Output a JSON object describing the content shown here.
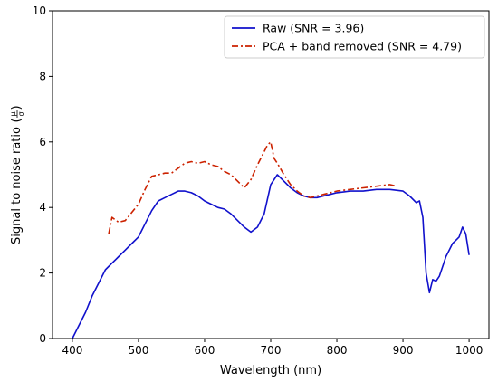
{
  "chart_data": {
    "type": "line",
    "title": "",
    "xlabel": "Wavelength (nm)",
    "ylabel": "Signal to noise ratio",
    "ylabel_fraction": {
      "num": "μ",
      "den": "σ"
    },
    "xlim": [
      370,
      1030
    ],
    "ylim": [
      0,
      10
    ],
    "xticks": [
      400,
      500,
      600,
      700,
      800,
      900,
      1000
    ],
    "yticks": [
      0,
      2,
      4,
      6,
      8,
      10
    ],
    "grid": false,
    "legend_position": "top-right",
    "series": [
      {
        "name": "Raw (SNR = 3.96)",
        "color": "#1111cc",
        "style": "solid",
        "x": [
          400,
          410,
          420,
          430,
          440,
          450,
          460,
          470,
          480,
          490,
          500,
          510,
          520,
          530,
          540,
          550,
          560,
          570,
          580,
          590,
          600,
          610,
          620,
          630,
          640,
          650,
          660,
          670,
          680,
          690,
          700,
          710,
          720,
          730,
          740,
          750,
          760,
          770,
          780,
          790,
          800,
          820,
          840,
          860,
          880,
          900,
          910,
          920,
          925,
          930,
          935,
          940,
          945,
          950,
          955,
          960,
          965,
          970,
          975,
          980,
          985,
          990,
          995,
          1000
        ],
        "y": [
          0.0,
          0.4,
          0.8,
          1.3,
          1.7,
          2.1,
          2.3,
          2.5,
          2.7,
          2.9,
          3.1,
          3.5,
          3.9,
          4.2,
          4.3,
          4.4,
          4.5,
          4.5,
          4.45,
          4.35,
          4.2,
          4.1,
          4.0,
          3.95,
          3.8,
          3.6,
          3.4,
          3.25,
          3.4,
          3.8,
          4.7,
          5.0,
          4.8,
          4.6,
          4.45,
          4.35,
          4.3,
          4.3,
          4.35,
          4.4,
          4.45,
          4.5,
          4.5,
          4.55,
          4.55,
          4.5,
          4.35,
          4.15,
          4.2,
          3.7,
          2.0,
          1.4,
          1.8,
          1.75,
          1.9,
          2.2,
          2.5,
          2.7,
          2.9,
          3.0,
          3.1,
          3.4,
          3.2,
          2.55
        ]
      },
      {
        "name": "PCA + band removed (SNR = 4.79)",
        "color": "#cc2200",
        "style": "dashdot",
        "x": [
          455,
          460,
          470,
          480,
          490,
          500,
          510,
          520,
          530,
          540,
          550,
          560,
          570,
          580,
          590,
          600,
          610,
          620,
          630,
          640,
          650,
          660,
          670,
          680,
          690,
          695,
          700,
          705,
          710,
          720,
          730,
          740,
          750,
          760,
          770,
          780,
          790,
          800,
          820,
          840,
          860,
          880,
          890
        ],
        "y": [
          3.2,
          3.7,
          3.55,
          3.6,
          3.85,
          4.1,
          4.55,
          4.95,
          5.0,
          5.05,
          5.05,
          5.2,
          5.35,
          5.4,
          5.35,
          5.4,
          5.3,
          5.25,
          5.1,
          5.0,
          4.8,
          4.6,
          4.85,
          5.3,
          5.7,
          5.9,
          6.0,
          5.5,
          5.35,
          5.0,
          4.7,
          4.5,
          4.35,
          4.3,
          4.35,
          4.4,
          4.45,
          4.5,
          4.55,
          4.6,
          4.65,
          4.7,
          4.65
        ]
      }
    ]
  }
}
